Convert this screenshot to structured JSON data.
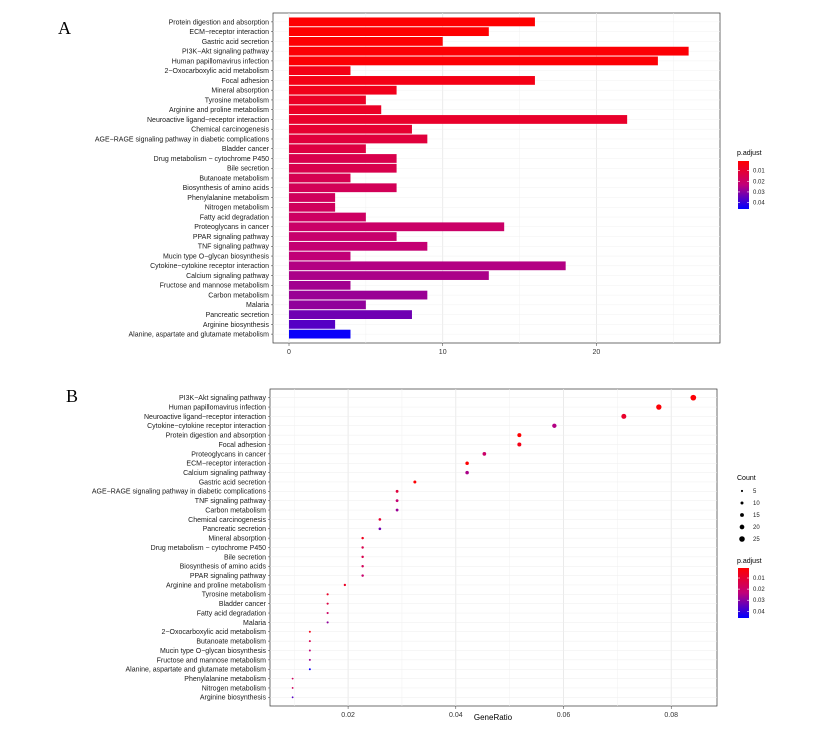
{
  "chart_data": [
    {
      "panel": "A",
      "type": "bar",
      "orientation": "horizontal",
      "categories": [
        "Protein digestion and absorption",
        "ECM−receptor interaction",
        "Gastric acid secretion",
        "PI3K−Akt signaling pathway",
        "Human papillomavirus infection",
        "2−Oxocarboxylic acid metabolism",
        "Focal adhesion",
        "Mineral absorption",
        "Tyrosine metabolism",
        "Arginine and proline metabolism",
        "Neuroactive ligand−receptor interaction",
        "Chemical carcinogenesis",
        "AGE−RAGE signaling pathway in diabetic complications",
        "Bladder cancer",
        "Drug metabolism − cytochrome P450",
        "Bile secretion",
        "Butanoate metabolism",
        "Biosynthesis of amino acids",
        "Phenylalanine metabolism",
        "Nitrogen metabolism",
        "Fatty acid degradation",
        "Proteoglycans in cancer",
        "PPAR signaling pathway",
        "TNF signaling pathway",
        "Mucin type O−glycan biosynthesis",
        "Cytokine−cytokine receptor interaction",
        "Calcium signaling pathway",
        "Fructose and mannose metabolism",
        "Carbon metabolism",
        "Malaria",
        "Pancreatic secretion",
        "Arginine biosynthesis",
        "Alanine, aspartate and glutamate metabolism"
      ],
      "values": [
        16,
        13,
        10,
        26,
        24,
        4,
        16,
        7,
        5,
        6,
        22,
        8,
        9,
        5,
        7,
        7,
        4,
        7,
        3,
        3,
        5,
        14,
        7,
        9,
        4,
        18,
        13,
        4,
        9,
        5,
        8,
        3,
        4
      ],
      "p_adjust": [
        0.0012,
        0.0012,
        0.0015,
        0.002,
        0.002,
        0.005,
        0.005,
        0.006,
        0.008,
        0.008,
        0.009,
        0.01,
        0.012,
        0.013,
        0.015,
        0.015,
        0.016,
        0.017,
        0.018,
        0.018,
        0.019,
        0.02,
        0.021,
        0.022,
        0.023,
        0.025,
        0.026,
        0.027,
        0.028,
        0.029,
        0.033,
        0.036,
        0.045
      ],
      "xlim": [
        0,
        27
      ],
      "xticks": [
        0,
        10,
        20
      ],
      "xlabel": "",
      "ylabel": "",
      "legend": {
        "title": "p.adjust",
        "ticks": [
          0.01,
          0.02,
          0.03,
          0.04
        ],
        "tick_labels": [
          "0.01",
          "0.02",
          "0.03",
          "0.04"
        ],
        "range": [
          0.001,
          0.046
        ],
        "low_color": "#ff0000",
        "high_color": "#0000ff",
        "placement": "right"
      }
    },
    {
      "panel": "B",
      "type": "scatter",
      "categories": [
        "PI3K−Akt signaling pathway",
        "Human papillomavirus infection",
        "Neuroactive ligand−receptor interaction",
        "Cytokine−cytokine receptor interaction",
        "Protein digestion and absorption",
        "Focal adhesion",
        "Proteoglycans in cancer",
        "ECM−receptor interaction",
        "Calcium signaling pathway",
        "Gastric acid secretion",
        "AGE−RAGE signaling pathway in diabetic complications",
        "TNF signaling pathway",
        "Carbon metabolism",
        "Chemical carcinogenesis",
        "Pancreatic secretion",
        "Mineral absorption",
        "Drug metabolism − cytochrome P450",
        "Bile secretion",
        "Biosynthesis of amino acids",
        "PPAR signaling pathway",
        "Arginine and proline metabolism",
        "Tyrosine metabolism",
        "Bladder cancer",
        "Fatty acid degradation",
        "Malaria",
        "2−Oxocarboxylic acid metabolism",
        "Butanoate metabolism",
        "Mucin type O−glycan biosynthesis",
        "Fructose and mannose metabolism",
        "Alanine, aspartate and glutamate metabolism",
        "Phenylalanine metabolism",
        "Nitrogen metabolism",
        "Arginine biosynthesis"
      ],
      "gene_ratio": [
        0.0841,
        0.0777,
        0.0712,
        0.0583,
        0.0518,
        0.0518,
        0.0453,
        0.0421,
        0.0421,
        0.0324,
        0.0291,
        0.0291,
        0.0291,
        0.0259,
        0.0259,
        0.0227,
        0.0227,
        0.0227,
        0.0227,
        0.0227,
        0.0194,
        0.0162,
        0.0162,
        0.0162,
        0.0162,
        0.0129,
        0.0129,
        0.0129,
        0.0129,
        0.0129,
        0.0097,
        0.0097,
        0.0097
      ],
      "count": [
        26,
        24,
        22,
        18,
        16,
        16,
        14,
        13,
        13,
        10,
        9,
        9,
        9,
        8,
        8,
        7,
        7,
        7,
        7,
        7,
        6,
        5,
        5,
        5,
        5,
        4,
        4,
        4,
        4,
        4,
        3,
        3,
        3
      ],
      "p_adjust": [
        0.002,
        0.002,
        0.009,
        0.025,
        0.0012,
        0.005,
        0.02,
        0.0012,
        0.026,
        0.0015,
        0.012,
        0.022,
        0.028,
        0.01,
        0.033,
        0.006,
        0.015,
        0.015,
        0.017,
        0.021,
        0.008,
        0.008,
        0.013,
        0.019,
        0.029,
        0.005,
        0.016,
        0.023,
        0.027,
        0.045,
        0.018,
        0.018,
        0.036
      ],
      "xlim": [
        0.0055,
        0.0885
      ],
      "xticks": [
        0.02,
        0.04,
        0.06,
        0.08
      ],
      "xtick_labels": [
        "0.02",
        "0.04",
        "0.06",
        "0.08"
      ],
      "xlabel": "GeneRatio",
      "ylabel": "",
      "size_legend": {
        "title": "Count",
        "values": [
          5,
          10,
          15,
          20,
          25
        ],
        "labels": [
          "5",
          "10",
          "15",
          "20",
          "25"
        ]
      },
      "color_legend": {
        "title": "p.adjust",
        "ticks": [
          0.01,
          0.02,
          0.03,
          0.04
        ],
        "tick_labels": [
          "0.01",
          "0.02",
          "0.03",
          "0.04"
        ],
        "range": [
          0.001,
          0.046
        ],
        "low_color": "#ff0000",
        "high_color": "#0000ff"
      }
    }
  ],
  "panels": {
    "a_letter": "A",
    "b_letter": "B"
  }
}
